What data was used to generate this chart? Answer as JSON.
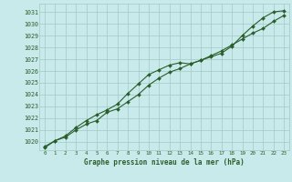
{
  "title": "Graphe pression niveau de la mer (hPa)",
  "bg_color": "#c8eaea",
  "grid_color": "#a0c8c8",
  "line_color": "#2a5e2a",
  "marker_color": "#2a5e2a",
  "xlim": [
    -0.5,
    23.5
  ],
  "ylim": [
    1019.3,
    1031.7
  ],
  "yticks": [
    1020,
    1021,
    1022,
    1023,
    1024,
    1025,
    1026,
    1027,
    1028,
    1029,
    1030,
    1031
  ],
  "xticks": [
    0,
    1,
    2,
    3,
    4,
    5,
    6,
    7,
    8,
    9,
    10,
    11,
    12,
    13,
    14,
    15,
    16,
    17,
    18,
    19,
    20,
    21,
    22,
    23
  ],
  "x": [
    0,
    1,
    2,
    3,
    4,
    5,
    6,
    7,
    8,
    9,
    10,
    11,
    12,
    13,
    14,
    15,
    16,
    17,
    18,
    19,
    20,
    21,
    22,
    23
  ],
  "y_upper": [
    1019.6,
    1020.1,
    1020.5,
    1021.2,
    1021.8,
    1022.3,
    1022.7,
    1023.2,
    1024.1,
    1024.9,
    1025.7,
    1026.1,
    1026.5,
    1026.7,
    1026.6,
    1026.9,
    1027.2,
    1027.5,
    1028.1,
    1029.0,
    1029.8,
    1030.5,
    1031.0,
    1031.1
  ],
  "y_lower": [
    1019.5,
    1020.1,
    1020.4,
    1021.0,
    1021.5,
    1021.8,
    1022.5,
    1022.8,
    1023.4,
    1024.0,
    1024.8,
    1025.4,
    1025.9,
    1026.2,
    1026.6,
    1026.9,
    1027.3,
    1027.7,
    1028.2,
    1028.7,
    1029.2,
    1029.6,
    1030.2,
    1030.7
  ]
}
